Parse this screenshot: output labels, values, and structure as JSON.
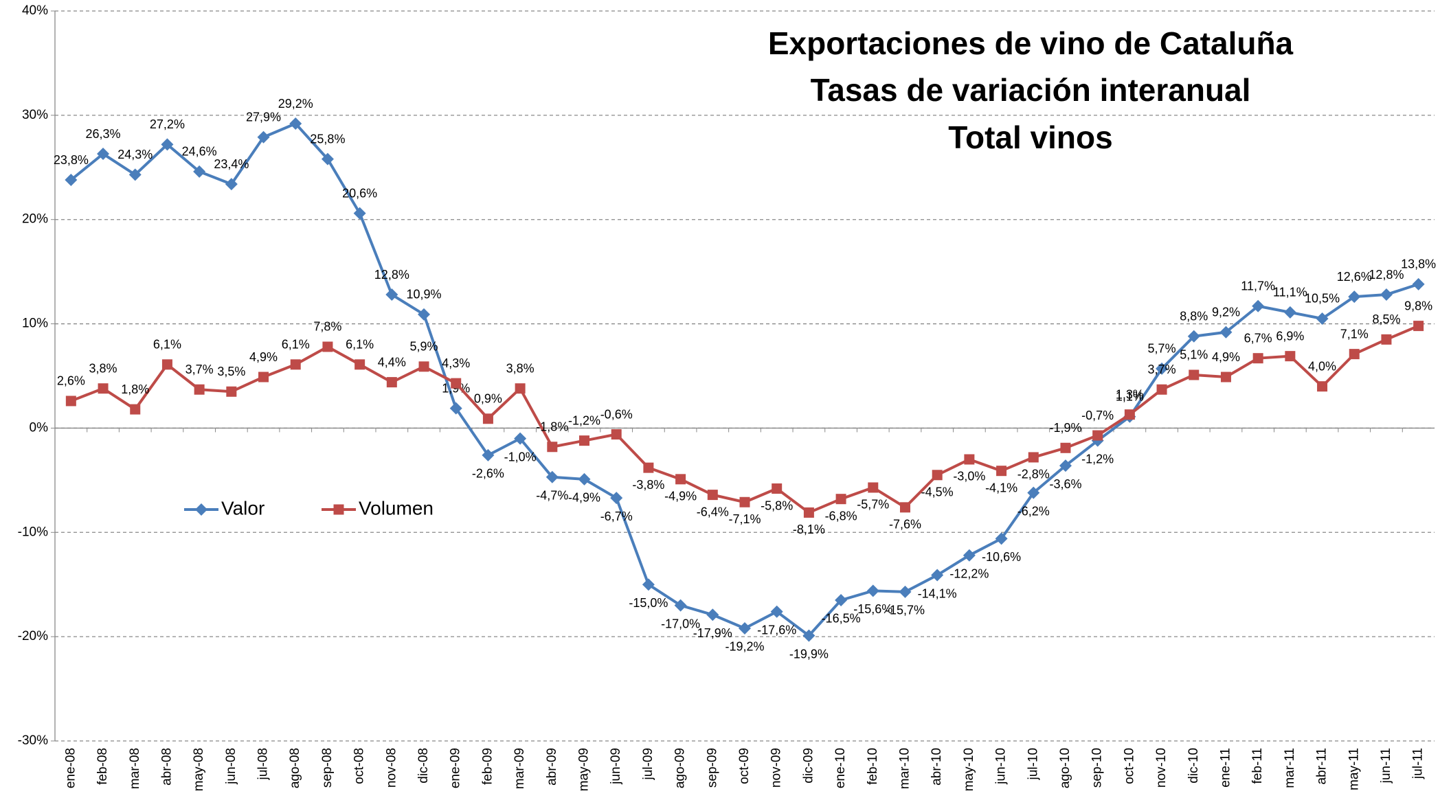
{
  "chart_data": {
    "type": "line",
    "title": [
      "Exportaciones de vino de Cataluña",
      "Tasas de variación interanual",
      "Total vinos"
    ],
    "categories": [
      "ene-08",
      "feb-08",
      "mar-08",
      "abr-08",
      "may-08",
      "jun-08",
      "jul-08",
      "ago-08",
      "sep-08",
      "oct-08",
      "nov-08",
      "dic-08",
      "ene-09",
      "feb-09",
      "mar-09",
      "abr-09",
      "may-09",
      "jun-09",
      "jul-09",
      "ago-09",
      "sep-09",
      "oct-09",
      "nov-09",
      "dic-09",
      "ene-10",
      "feb-10",
      "mar-10",
      "abr-10",
      "may-10",
      "jun-10",
      "jul-10",
      "ago-10",
      "sep-10",
      "oct-10",
      "nov-10",
      "dic-10",
      "ene-11",
      "feb-11",
      "mar-11",
      "abr-11",
      "may-11",
      "jun-11",
      "jul-11"
    ],
    "series": [
      {
        "name": "Valor",
        "color": "#4a7ebb",
        "marker": "diamond",
        "values": [
          23.8,
          26.3,
          24.3,
          27.2,
          24.6,
          23.4,
          27.9,
          29.2,
          25.8,
          20.6,
          12.8,
          10.9,
          1.9,
          -2.6,
          -1.0,
          -4.7,
          -4.9,
          -6.7,
          -15.0,
          -17.0,
          -17.9,
          -19.2,
          -17.6,
          -19.9,
          -16.5,
          -15.6,
          -15.7,
          -14.1,
          -12.2,
          -10.6,
          -6.2,
          -3.6,
          -1.2,
          1.1,
          5.7,
          8.8,
          9.2,
          11.7,
          11.1,
          10.5,
          12.6,
          12.8,
          13.8
        ],
        "value_labels": [
          "23,8%",
          "26,3%",
          "24,3%",
          "27,2%",
          "24,6%",
          "23,4%",
          "27,9%",
          "29,2%",
          "25,8%",
          "20,6%",
          "12,8%",
          "10,9%",
          "1,9%",
          "-2,6%",
          "-1,0%",
          "-4,7%",
          "-4,9%",
          "-6,7%",
          "-15,0%",
          "-17,0%",
          "-17,9%",
          "-19,2%",
          "-17,6%",
          "-19,9%",
          "-16,5%",
          "-15,6%",
          "-15,7%",
          "-14,1%",
          "-12,2%",
          "-10,6%",
          "-6,2%",
          "-3,6%",
          "-1,2%",
          "1,1%",
          "5,7%",
          "8,8%",
          "9,2%",
          "11,7%",
          "11,1%",
          "10,5%",
          "12,6%",
          "12,8%",
          "13,8%"
        ]
      },
      {
        "name": "Volumen",
        "color": "#be4b48",
        "marker": "square",
        "values": [
          2.6,
          3.8,
          1.8,
          6.1,
          3.7,
          3.5,
          4.9,
          6.1,
          7.8,
          6.1,
          4.4,
          5.9,
          4.3,
          0.9,
          3.8,
          -1.8,
          -1.2,
          -0.6,
          -3.8,
          -4.9,
          -6.4,
          -7.1,
          -5.8,
          -8.1,
          -6.8,
          -5.7,
          -7.6,
          -4.5,
          -3.0,
          -4.1,
          -2.8,
          -1.9,
          -0.7,
          1.3,
          3.7,
          5.1,
          4.9,
          6.7,
          6.9,
          4.0,
          7.1,
          8.5,
          9.8
        ],
        "value_labels": [
          "2,6%",
          "3,8%",
          "1,8%",
          "6,1%",
          "3,7%",
          "3,5%",
          "4,9%",
          "6,1%",
          "7,8%",
          "6,1%",
          "4,4%",
          "5,9%",
          "4,3%",
          "0,9%",
          "3,8%",
          "-1,8%",
          "-1,2%",
          "-0,6%",
          "-3,8%",
          "-4,9%",
          "-6,4%",
          "-7,1%",
          "-5,8%",
          "-8,1%",
          "-6,8%",
          "-5,7%",
          "-7,6%",
          "-4,5%",
          "-3,0%",
          "-4,1%",
          "-2,8%",
          "-1,9%",
          "-0,7%",
          "1,3%",
          "3,7%",
          "5,1%",
          "4,9%",
          "6,7%",
          "6,9%",
          "4,0%",
          "7,1%",
          "8,5%",
          "9,8%"
        ]
      }
    ],
    "ylim": [
      -30,
      40
    ],
    "yticks": [
      {
        "value": -30,
        "label": "-30%"
      },
      {
        "value": -20,
        "label": "-20%"
      },
      {
        "value": -10,
        "label": "-10%"
      },
      {
        "value": 0,
        "label": "0%"
      },
      {
        "value": 10,
        "label": "10%"
      },
      {
        "value": 20,
        "label": "20%"
      },
      {
        "value": 30,
        "label": "30%"
      },
      {
        "value": 40,
        "label": "40%"
      }
    ],
    "grid": true,
    "legend": "left"
  }
}
